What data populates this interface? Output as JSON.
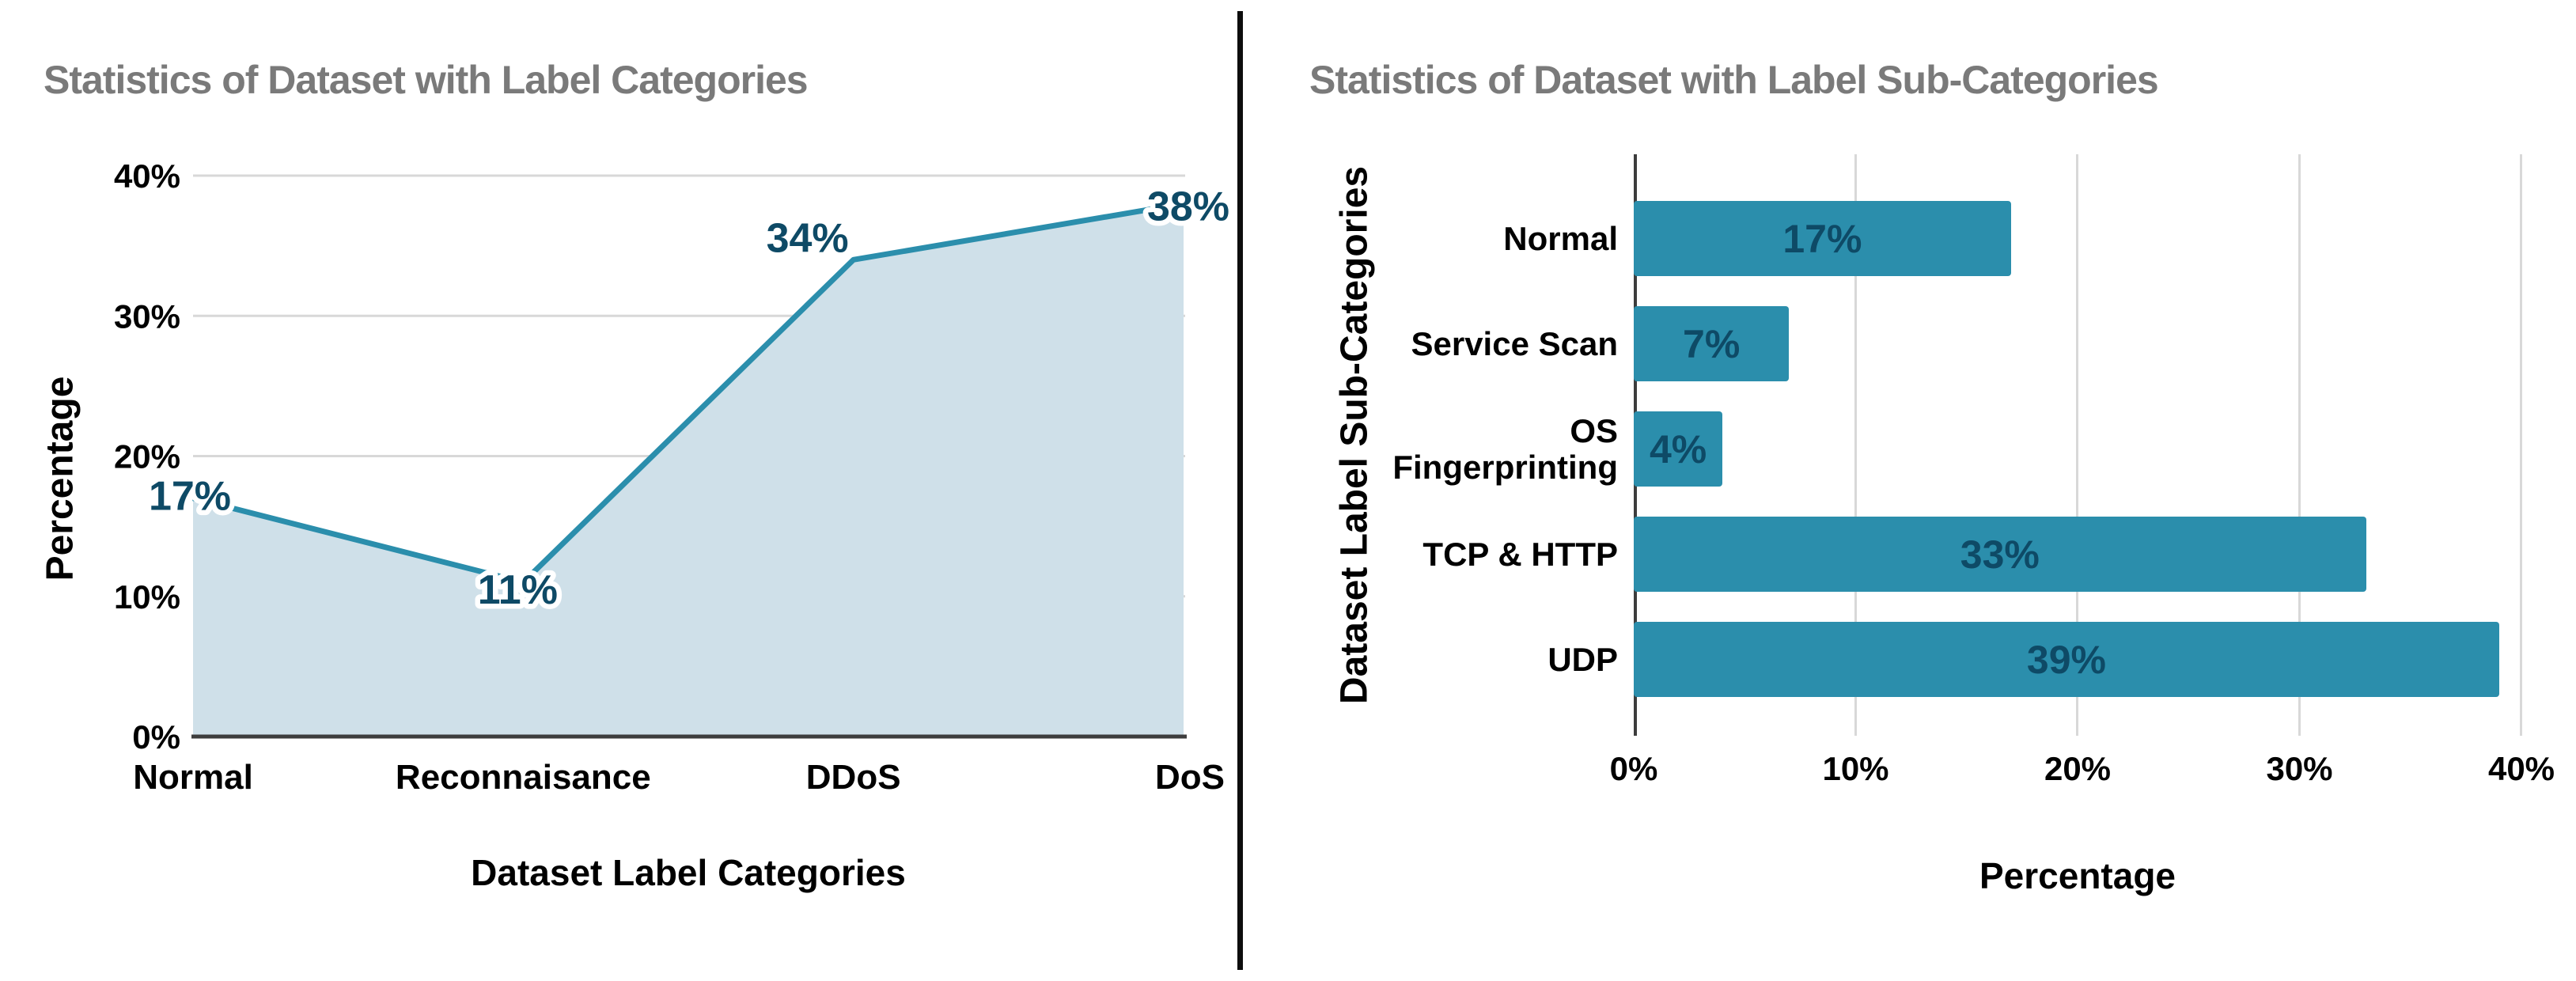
{
  "colors": {
    "accent_teal": "#2b8eac",
    "area_fill": "#cfe0e9",
    "value_label": "#0e4a66",
    "title_gray": "#7a7a7a",
    "grid_gray": "#d8d8d8",
    "axis_dark": "#3d3d3d",
    "text_black": "#000000",
    "divider_black": "#0d0d0d",
    "background": "#ffffff"
  },
  "chart_data": [
    {
      "type": "area",
      "title": "Statistics of Dataset with Label Categories",
      "categories": [
        "Normal",
        "Reconnaisance",
        "DDoS",
        "DoS"
      ],
      "values": [
        17,
        11,
        34,
        38
      ],
      "data_labels": [
        "17%",
        "11%",
        "34%",
        "38%"
      ],
      "xlabel": "Dataset Label Categories",
      "ylabel": "Percentage",
      "ylim": [
        0,
        40
      ],
      "yticks": [
        "0%",
        "10%",
        "20%",
        "30%",
        "40%"
      ],
      "grid": "horizontal",
      "legend": "none",
      "line_color": "#2b8eac",
      "fill_color": "#cfe0e9",
      "label_color": "#0e4a66"
    },
    {
      "type": "bar",
      "orientation": "horizontal",
      "title": "Statistics of Dataset with Label Sub-Categories",
      "categories": [
        "Normal",
        "Service Scan",
        "OS Fingerprinting",
        "TCP & HTTP",
        "UDP"
      ],
      "category_display": [
        "Normal",
        "Service Scan",
        "OS\nFingerprinting",
        "TCP & HTTP",
        "UDP"
      ],
      "values": [
        17,
        7,
        4,
        33,
        39
      ],
      "data_labels": [
        "17%",
        "7%",
        "4%",
        "33%",
        "39%"
      ],
      "xlabel": "Percentage",
      "ylabel": "Dataset Label Sub-Categories",
      "xlim": [
        0,
        40
      ],
      "xticks": [
        "0%",
        "10%",
        "20%",
        "30%",
        "40%"
      ],
      "grid": "vertical",
      "legend": "none",
      "bar_color": "#2b8eac",
      "label_color": "#0e4a66"
    }
  ]
}
